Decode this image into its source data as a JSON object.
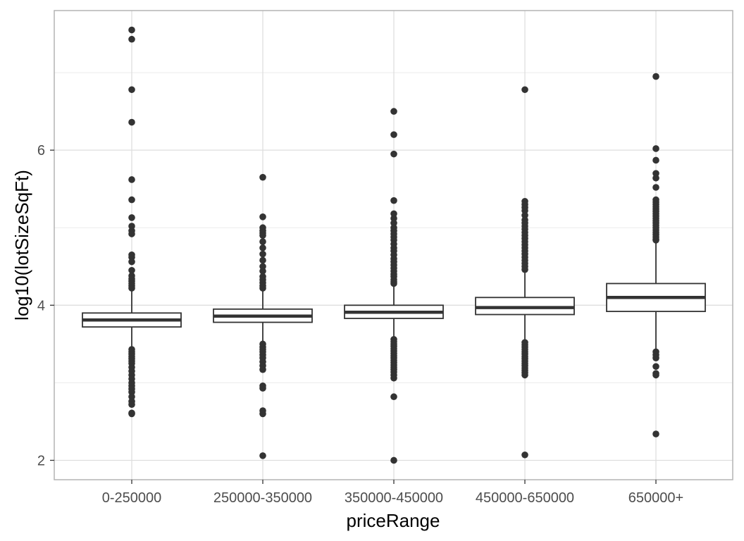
{
  "chart_data": {
    "type": "boxplot",
    "xlabel": "priceRange",
    "ylabel": "log10(lotSizeSqFt)",
    "ylim": [
      1.75,
      7.8
    ],
    "y_ticks": [
      2,
      4,
      6
    ],
    "y_minor_ticks": [
      3,
      5,
      7
    ],
    "grid": true,
    "categories": [
      "0-250000",
      "250000-350000",
      "350000-450000",
      "450000-650000",
      "650000+"
    ],
    "boxes": [
      {
        "category": "0-250000",
        "q1": 3.72,
        "median": 3.81,
        "q3": 3.9,
        "whisker_low": 3.45,
        "whisker_high": 4.18
      },
      {
        "category": "250000-350000",
        "q1": 3.78,
        "median": 3.86,
        "q3": 3.95,
        "whisker_low": 3.53,
        "whisker_high": 4.2
      },
      {
        "category": "350000-450000",
        "q1": 3.83,
        "median": 3.91,
        "q3": 4.0,
        "whisker_low": 3.58,
        "whisker_high": 4.25
      },
      {
        "category": "450000-650000",
        "q1": 3.88,
        "median": 3.97,
        "q3": 4.1,
        "whisker_low": 3.56,
        "whisker_high": 4.42
      },
      {
        "category": "650000+",
        "q1": 3.92,
        "median": 4.1,
        "q3": 4.28,
        "whisker_low": 3.4,
        "whisker_high": 4.82
      }
    ],
    "outliers": [
      [
        7.55,
        7.43,
        6.78,
        6.36,
        5.62,
        5.36,
        5.13,
        5.02,
        4.96,
        4.92,
        4.65,
        4.62,
        4.56,
        4.45,
        4.38,
        4.34,
        4.31,
        4.28,
        4.25,
        4.22,
        3.43,
        3.4,
        3.37,
        3.34,
        3.31,
        3.28,
        3.25,
        3.2,
        3.15,
        3.1,
        3.05,
        3.0,
        2.96,
        2.92,
        2.88,
        2.82,
        2.76,
        2.72,
        2.61,
        2.6
      ],
      [
        5.65,
        5.14,
        5.0,
        4.96,
        4.93,
        4.9,
        4.82,
        4.74,
        4.66,
        4.58,
        4.5,
        4.44,
        4.37,
        4.33,
        4.29,
        4.25,
        4.22,
        3.5,
        3.46,
        3.43,
        3.4,
        3.36,
        3.32,
        3.27,
        3.22,
        3.17,
        2.96,
        2.93,
        2.64,
        2.6,
        2.06
      ],
      [
        6.5,
        6.2,
        5.95,
        5.35,
        5.18,
        5.12,
        5.06,
        5.0,
        4.96,
        4.92,
        4.88,
        4.84,
        4.79,
        4.74,
        4.7,
        4.65,
        4.6,
        4.56,
        4.52,
        4.48,
        4.44,
        4.4,
        4.37,
        4.33,
        4.3,
        4.28,
        3.56,
        3.53,
        3.5,
        3.47,
        3.44,
        3.41,
        3.38,
        3.35,
        3.32,
        3.29,
        3.26,
        3.23,
        3.2,
        3.17,
        3.14,
        3.1,
        3.06,
        2.82,
        2.0
      ],
      [
        6.78,
        5.34,
        5.3,
        5.26,
        5.22,
        5.16,
        5.1,
        5.06,
        5.02,
        4.98,
        4.94,
        4.9,
        4.86,
        4.82,
        4.78,
        4.74,
        4.7,
        4.66,
        4.62,
        4.58,
        4.54,
        4.5,
        4.46,
        3.52,
        3.49,
        3.46,
        3.43,
        3.4,
        3.37,
        3.34,
        3.31,
        3.28,
        3.25,
        3.22,
        3.19,
        3.16,
        3.13,
        3.1,
        2.07
      ],
      [
        6.95,
        6.02,
        5.87,
        5.7,
        5.64,
        5.52,
        5.36,
        5.33,
        5.3,
        5.27,
        5.24,
        5.21,
        5.18,
        5.15,
        5.12,
        5.09,
        5.06,
        5.03,
        5.0,
        4.97,
        4.94,
        4.91,
        4.88,
        4.85,
        4.84,
        3.4,
        3.36,
        3.32,
        3.21,
        3.12,
        3.1,
        2.34
      ]
    ]
  }
}
